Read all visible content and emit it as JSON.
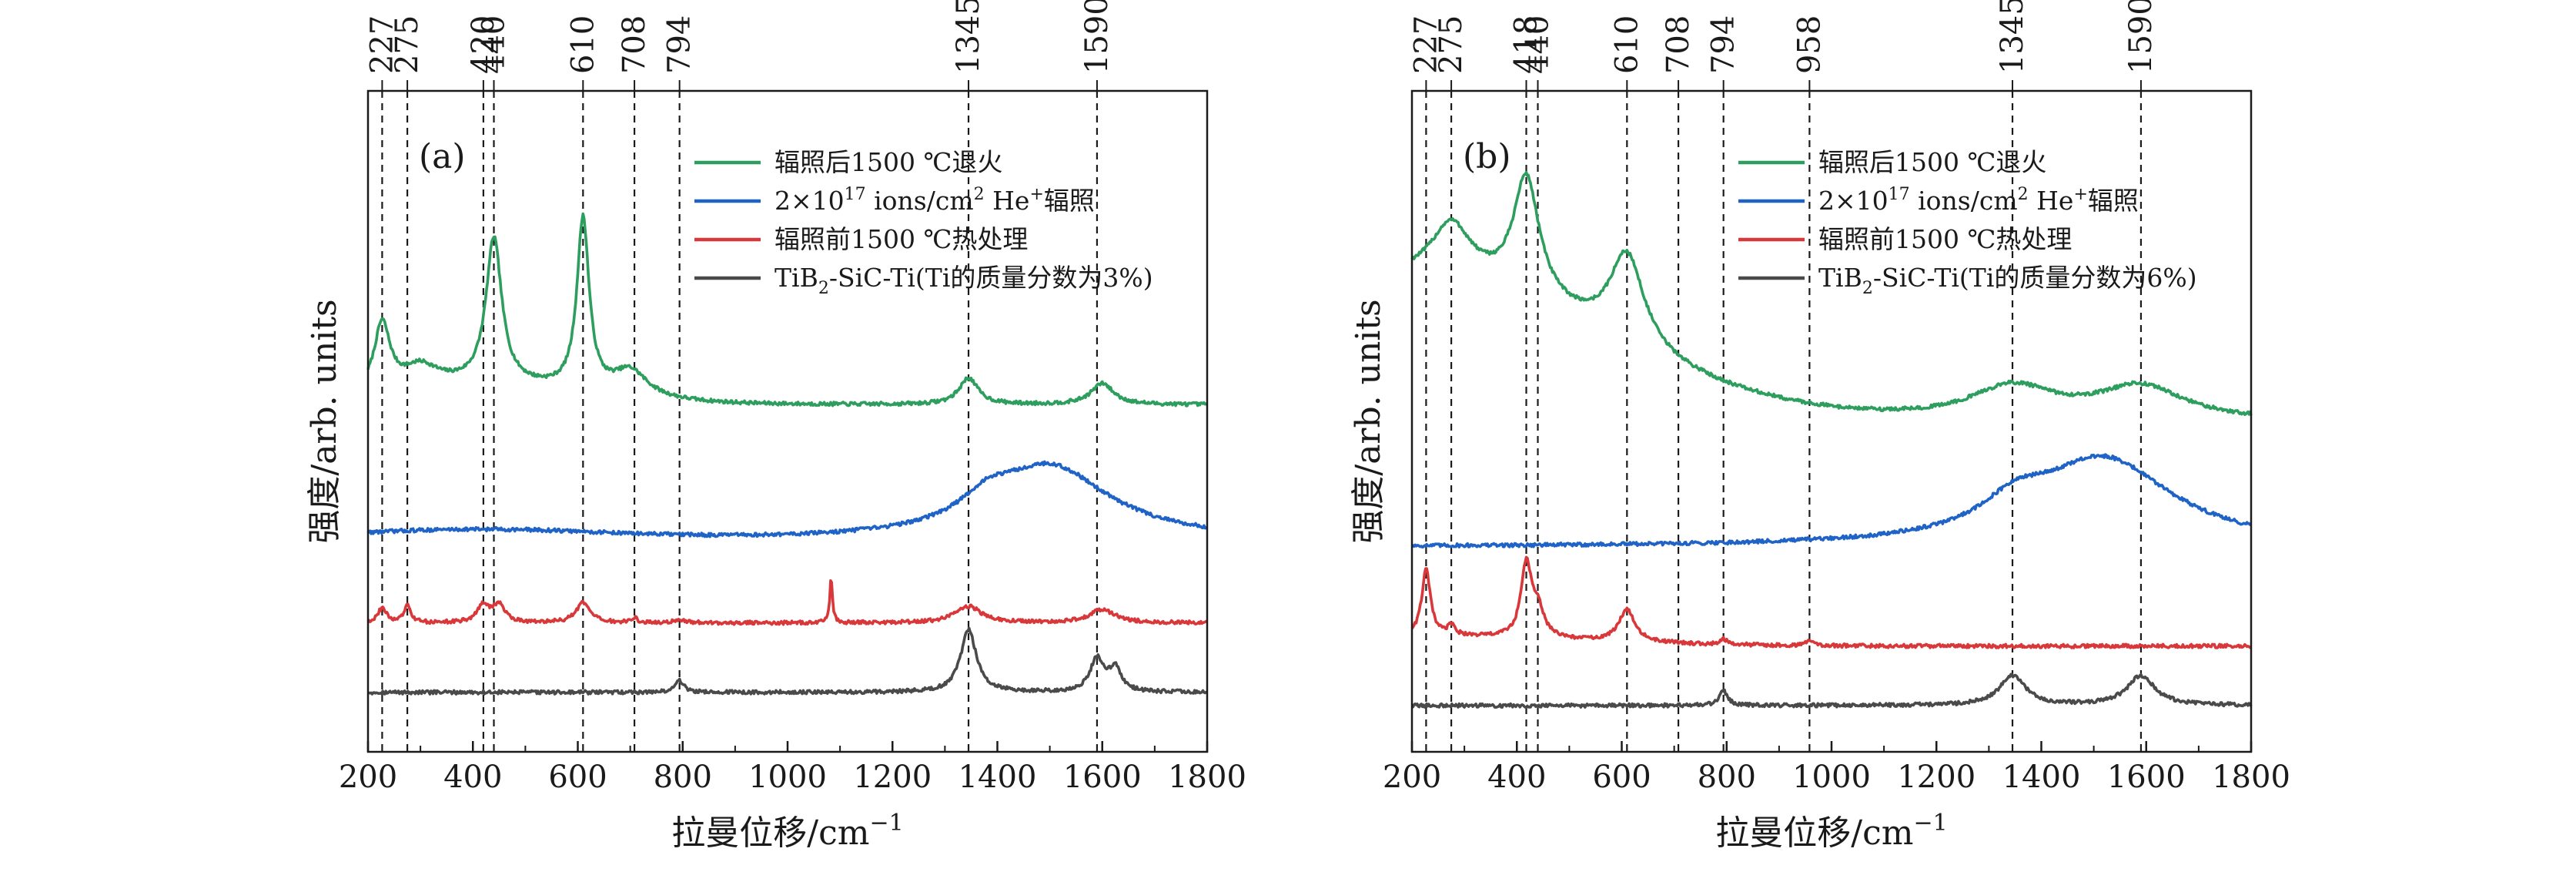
{
  "chart_data": [
    {
      "type": "line",
      "panel_label": "(a)",
      "xlabel": "拉曼位移/cm",
      "xlabel_exp": "−1",
      "ylabel": "强度/arb. units",
      "xlim": [
        200,
        1800
      ],
      "xticks": [
        200,
        400,
        600,
        800,
        1000,
        1200,
        1400,
        1600,
        1800
      ],
      "ylim": [
        0,
        100
      ],
      "grid": false,
      "legend_position": "top-right",
      "reference_lines": [
        227,
        275,
        420,
        440,
        610,
        708,
        794,
        1345,
        1590
      ],
      "series": [
        {
          "name": "辐照后1500 ℃退火",
          "legend_html": "辐照后1500 ℃退火",
          "color": "#2e9e5e",
          "baseline": 52.5,
          "peaks": [
            [
              227,
              10,
              18
            ],
            [
              300,
              3,
              40
            ],
            [
              440,
              22,
              18
            ],
            [
              610,
              26,
              14
            ],
            [
              700,
              4,
              40
            ],
            [
              1345,
              4,
              22
            ],
            [
              1600,
              3.2,
              26
            ]
          ],
          "broad": [
            [
              400,
              3,
              200
            ]
          ]
        },
        {
          "name": "2×1017 ions/cm2 He+辐照",
          "legend_html": "2×10<tspan font-size='22' dy='-13'>17</tspan><tspan dy='13'> ions/cm</tspan><tspan font-size='22' dy='-13'>2</tspan><tspan dy='13'> He</tspan><tspan font-size='22' dy='-13'>+</tspan><tspan dy='13'>辐照</tspan>",
          "color": "#1f63c6",
          "baseline": 32,
          "peaks": [
            [
              1500,
              11,
              140
            ],
            [
              1380,
              3,
              60
            ]
          ],
          "broad": [
            [
              400,
              1.5,
              250
            ]
          ]
        },
        {
          "name": "辐照前1500 ℃热处理",
          "legend_html": "辐照前1500 ℃热处理",
          "color": "#d9383a",
          "baseline": 19.5,
          "peaks": [
            [
              227,
              2.2,
              10
            ],
            [
              275,
              2.5,
              8
            ],
            [
              420,
              2.6,
              14
            ],
            [
              450,
              2.6,
              14
            ],
            [
              610,
              3,
              16
            ],
            [
              708,
              0.8,
              6
            ],
            [
              794,
              0.5,
              10
            ],
            [
              1083,
              7,
              3
            ],
            [
              1345,
              2.5,
              30
            ],
            [
              1600,
              2,
              30
            ]
          ],
          "broad": []
        },
        {
          "name": "TiB2-SiC-Ti(Ti的质量分数为3%)",
          "legend_html": "TiB<tspan font-size='22' dy='9'>2</tspan><tspan dy='-9'>-SiC-Ti(Ti的质量分数为3%)</tspan>",
          "color": "#4a4a4a",
          "baseline": 9,
          "peaks": [
            [
              794,
              1.8,
              10
            ],
            [
              1345,
              9.5,
              18
            ],
            [
              1590,
              5,
              16
            ],
            [
              1625,
              3.5,
              14
            ]
          ],
          "broad": []
        }
      ]
    },
    {
      "type": "line",
      "panel_label": "(b)",
      "xlabel": "拉曼位移/cm",
      "xlabel_exp": "−1",
      "ylabel": "强度/arb. units",
      "xlim": [
        200,
        1800
      ],
      "xticks": [
        200,
        400,
        600,
        800,
        1000,
        1200,
        1400,
        1600,
        1800
      ],
      "ylim": [
        0,
        100
      ],
      "grid": false,
      "legend_position": "top-right",
      "reference_lines": [
        227,
        275,
        418,
        440,
        610,
        708,
        794,
        958,
        1345,
        1590
      ],
      "series": [
        {
          "name": "辐照后1500 ℃退火",
          "legend_html": "辐照后1500 ℃退火",
          "color": "#2e9e5e",
          "baseline": 50,
          "peaks": [
            [
              275,
              8,
              45
            ],
            [
              418,
              18,
              30
            ],
            [
              610,
              14,
              40
            ],
            [
              1345,
              5,
              100
            ],
            [
              1590,
              5,
              100
            ]
          ],
          "broad": [
            [
              200,
              22,
              350
            ]
          ]
        },
        {
          "name": "2×1017 ions/cm2 He+辐照",
          "legend_html": "2×10<tspan font-size='22' dy='-13'>17</tspan><tspan dy='13'> ions/cm</tspan><tspan font-size='22' dy='-13'>2</tspan><tspan dy='13'> He</tspan><tspan font-size='22' dy='-13'>+</tspan><tspan dy='13'>辐照</tspan>",
          "color": "#1f63c6",
          "baseline": 31,
          "peaks": [
            [
              1520,
              13,
              160
            ],
            [
              1350,
              4,
              80
            ]
          ],
          "broad": []
        },
        {
          "name": "辐照前1500 ℃热处理",
          "legend_html": "辐照前1500 ℃热处理",
          "color": "#d9383a",
          "baseline": 16,
          "peaks": [
            [
              227,
              10,
              10
            ],
            [
              275,
              1.5,
              8
            ],
            [
              418,
              11,
              12
            ],
            [
              440,
              4,
              14
            ],
            [
              610,
              5,
              18
            ],
            [
              794,
              0.8,
              8
            ],
            [
              958,
              0.8,
              8
            ]
          ],
          "broad": [
            [
              200,
              1.5,
              300
            ]
          ]
        },
        {
          "name": "TiB2-SiC-Ti(Ti的质量分数为6%)",
          "legend_html": "TiB<tspan font-size='22' dy='9'>2</tspan><tspan dy='-9'>-SiC-Ti(Ti的质量分数为6%)</tspan>",
          "color": "#4a4a4a",
          "baseline": 7,
          "peaks": [
            [
              794,
              2.2,
              10
            ],
            [
              1345,
              4.5,
              30
            ],
            [
              1590,
              4.5,
              32
            ]
          ],
          "broad": []
        }
      ]
    }
  ]
}
